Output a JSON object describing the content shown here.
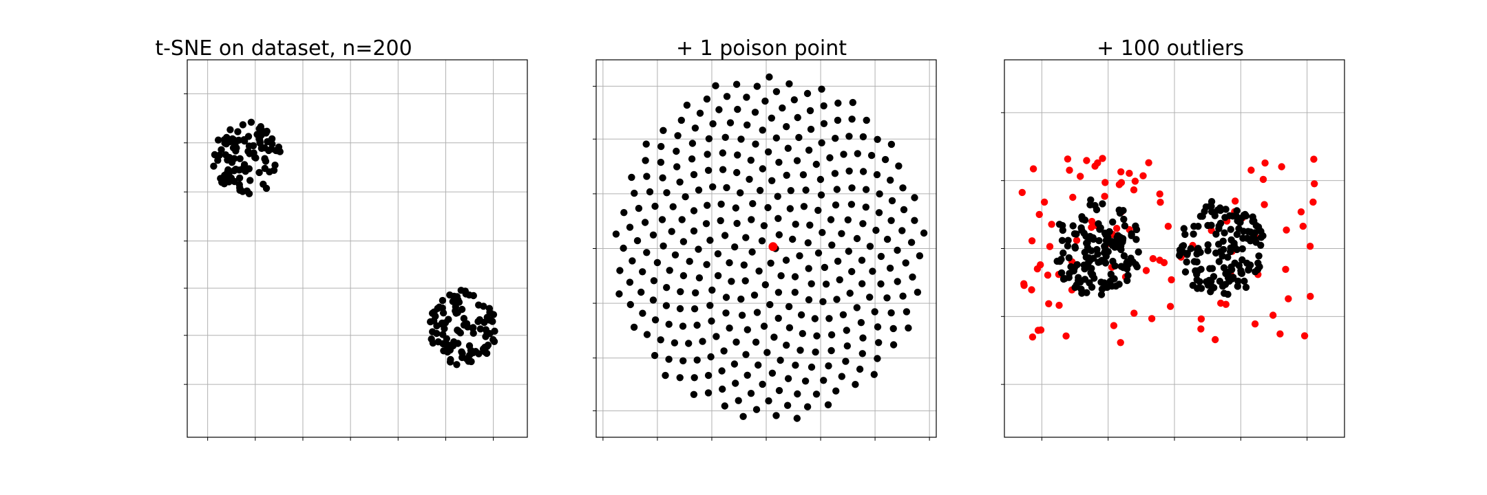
{
  "figure": {
    "panels": [
      {
        "title": "t-SNE on dataset, n=200"
      },
      {
        "title": "+ 1 poison point"
      },
      {
        "title": "+ 100 outliers"
      }
    ]
  },
  "colors": {
    "normal": "#000000",
    "highlight": "#ff0000",
    "grid": "#b0b0b0",
    "frame": "#000000"
  },
  "chart_data": [
    {
      "type": "scatter",
      "title": "t-SNE on dataset, n=200",
      "xlabel": "",
      "ylabel": "",
      "xlim": [
        0,
        10
      ],
      "ylim": [
        0,
        10
      ],
      "grid": true,
      "series": [
        {
          "color": "#000000",
          "generator": {
            "kind": "random_disc",
            "count": 200,
            "clusters": [
              {
                "cx": 1.75,
                "cy": 7.4,
                "r": 1.0,
                "count": 100
              },
              {
                "cx": 8.1,
                "cy": 2.9,
                "r": 1.0,
                "count": 100
              }
            ],
            "seed": 11
          }
        }
      ]
    },
    {
      "type": "scatter",
      "title": "+ 1 poison point",
      "xlabel": "",
      "ylabel": "",
      "xlim": [
        -5,
        5
      ],
      "ylim": [
        -5,
        5
      ],
      "grid": true,
      "series": [
        {
          "color": "#000000",
          "generator": {
            "kind": "sunflower",
            "count": 350,
            "cx": 0.1,
            "cy": 0.0,
            "r": 4.6
          }
        },
        {
          "color": "#ff0000",
          "points": [
            [
              0.2,
              0.05
            ]
          ]
        }
      ]
    },
    {
      "type": "scatter",
      "title": "+ 100 outliers",
      "xlabel": "",
      "ylabel": "",
      "xlim": [
        -5,
        5
      ],
      "ylim": [
        -5,
        5
      ],
      "grid": true,
      "series": [
        {
          "color": "#ff0000",
          "generator": {
            "kind": "random_box",
            "count": 100,
            "xmin": -4.6,
            "xmax": 4.6,
            "ymin": -2.5,
            "ymax": 2.4,
            "seed": 37
          }
        },
        {
          "color": "#000000",
          "generator": {
            "kind": "random_disc",
            "count": 300,
            "clusters": [
              {
                "cx": -2.3,
                "cy": 0.0,
                "r": 1.3,
                "count": 150
              },
              {
                "cx": 1.4,
                "cy": 0.0,
                "r": 1.3,
                "count": 150
              }
            ],
            "seed": 23
          }
        }
      ]
    }
  ]
}
